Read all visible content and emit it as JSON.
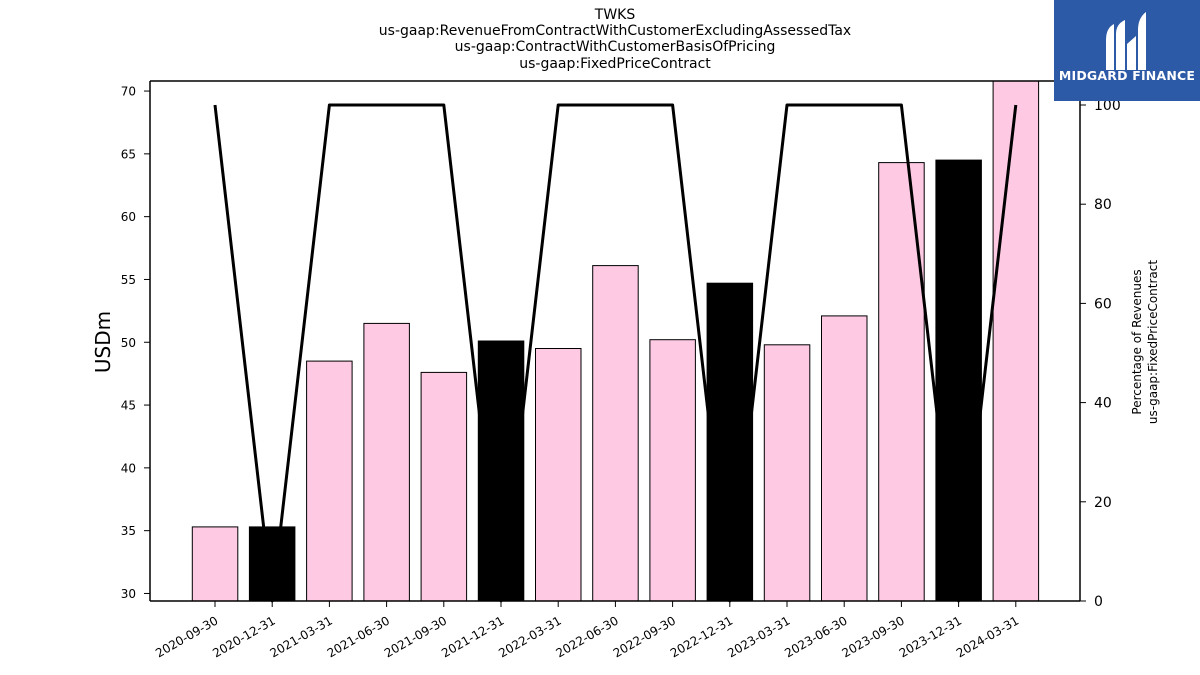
{
  "logo": {
    "text": "MIDGARD FINANCE",
    "icon": "midgard-m-icon",
    "background": "#2d5aa6"
  },
  "colors": {
    "bar_pink": "#fdc9e3",
    "bar_black": "#000000",
    "line": "#000000"
  },
  "chart_data": {
    "type": "bar",
    "title": [
      "TWKS",
      "us-gaap:RevenueFromContractWithCustomerExcludingAssessedTax",
      "us-gaap:ContractWithCustomerBasisOfPricing",
      "us-gaap:FixedPriceContract"
    ],
    "categories": [
      "2020-09-30",
      "2020-12-31",
      "2021-03-31",
      "2021-06-30",
      "2021-09-30",
      "2021-12-31",
      "2022-03-31",
      "2022-06-30",
      "2022-09-30",
      "2022-12-31",
      "2023-03-31",
      "2023-06-30",
      "2023-09-30",
      "2023-12-31",
      "2024-03-31"
    ],
    "series": [
      {
        "axis": "left",
        "kind": "bar",
        "values": [
          35.3,
          35.3,
          48.5,
          51.5,
          47.6,
          50.1,
          49.5,
          56.1,
          50.2,
          54.7,
          49.8,
          52.1,
          64.3,
          64.5,
          71.0
        ],
        "colors": [
          "pink",
          "black",
          "pink",
          "pink",
          "pink",
          "black",
          "pink",
          "pink",
          "pink",
          "black",
          "pink",
          "pink",
          "pink",
          "black",
          "pink"
        ]
      },
      {
        "axis": "right",
        "kind": "line",
        "values": [
          100,
          0,
          100,
          100,
          100,
          0,
          100,
          100,
          100,
          0,
          100,
          100,
          100,
          0,
          100
        ]
      }
    ],
    "ylabel": "USDm",
    "ylim": [
      29.4,
      70.8
    ],
    "yticks": [
      30,
      35,
      40,
      45,
      50,
      55,
      60,
      65,
      70
    ],
    "y2label": [
      "Percentage of Revenues",
      "us-gaap:FixedPriceContract"
    ],
    "y2lim": [
      0,
      100
    ],
    "y2ticks": [
      0,
      20,
      40,
      60,
      80,
      100
    ]
  }
}
